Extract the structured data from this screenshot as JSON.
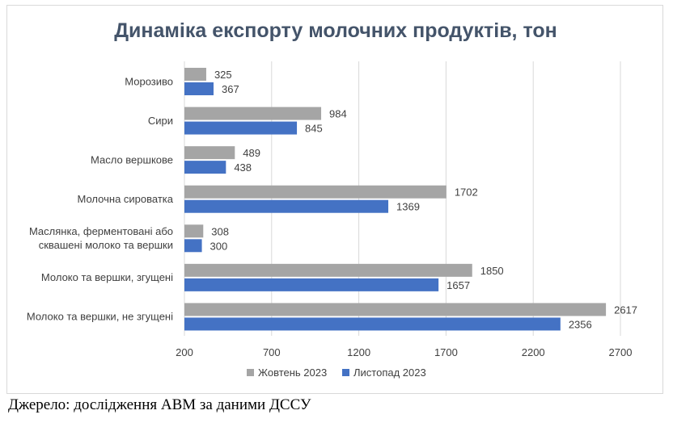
{
  "chart_data": {
    "type": "bar",
    "orientation": "horizontal",
    "title": "Динаміка експорту молочних продуктів, тон",
    "categories": [
      [
        "Морозиво"
      ],
      [
        "Сири"
      ],
      [
        "Масло вершкове"
      ],
      [
        "Молочна сироватка"
      ],
      [
        "Маслянка, ферментовані або",
        "сквашені молоко та вершки"
      ],
      [
        "Молоко та вершки, згущені"
      ],
      [
        "Молоко та вершки, не згущені"
      ]
    ],
    "series": [
      {
        "name": "Жовтень 2023",
        "color": "#a5a5a5",
        "values": [
          325,
          984,
          489,
          1702,
          308,
          1850,
          2617
        ]
      },
      {
        "name": "Листопад 2023",
        "color": "#4472c4",
        "values": [
          367,
          845,
          438,
          1369,
          300,
          1657,
          2356
        ]
      }
    ],
    "xlim": [
      200,
      2700
    ],
    "xticks": [
      200,
      700,
      1200,
      1700,
      2200,
      2700
    ],
    "grid": true,
    "legend": "bottom"
  },
  "source_note": "Джерело: дослідження АВМ за даними ДССУ"
}
